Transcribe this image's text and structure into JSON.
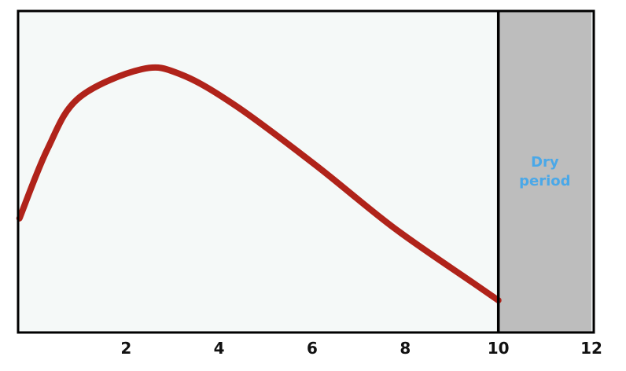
{
  "chart_data": {
    "type": "line",
    "title": "",
    "xlabel": "",
    "ylabel": "",
    "xlim": [
      -0.32,
      12.05
    ],
    "ylim": [
      0,
      100
    ],
    "grid": false,
    "xticks": [
      2,
      4,
      6,
      8,
      10,
      12
    ],
    "xtick_labels": [
      "2",
      "4",
      "6",
      "8",
      "10",
      "12"
    ],
    "series": [
      {
        "color": "#b0231a",
        "x": [
          -0.29,
          0.31,
          0.98,
          2.34,
          3.19,
          4.37,
          6.07,
          7.76,
          9.46,
          10.0
        ],
        "y": [
          35.5,
          57,
          72.9,
          81.9,
          80.2,
          70.4,
          52.1,
          32.5,
          15.4,
          10
        ]
      }
    ],
    "shaded_region": {
      "x_range": [
        10,
        12
      ],
      "color": "#bdbdbd",
      "label_lines": [
        "Dry",
        "period"
      ],
      "label_color": "#4aa8e8"
    },
    "plot_background": "#f5f9f8"
  }
}
